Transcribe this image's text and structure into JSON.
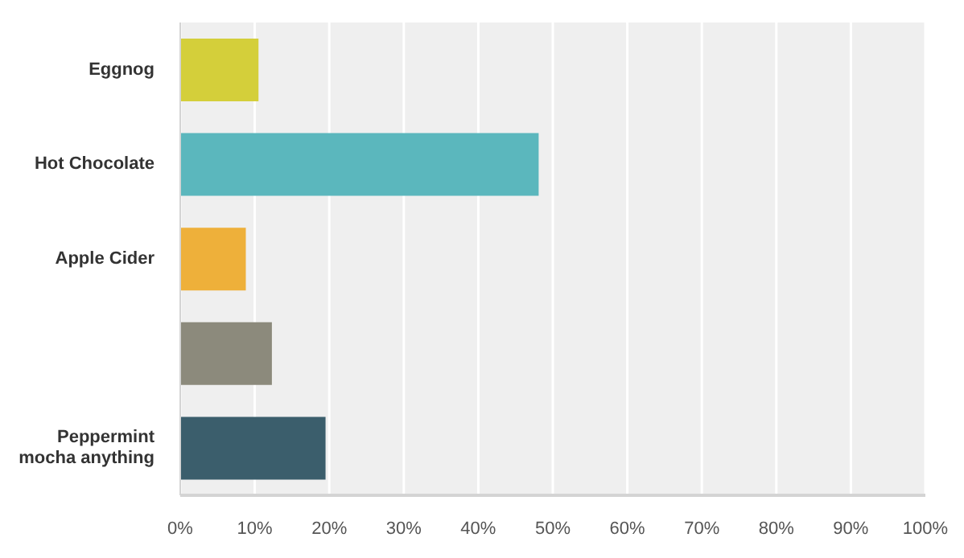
{
  "chart_data": {
    "type": "bar",
    "orientation": "horizontal",
    "categories": [
      "Eggnog",
      "Hot Chocolate",
      "Apple Cider",
      null,
      "Peppermint mocha anything"
    ],
    "values": [
      10.5,
      48.1,
      8.8,
      12.3,
      19.5
    ],
    "colors": [
      "#d4cf3a",
      "#5bb7bd",
      "#eeb03a",
      "#8c8a7c",
      "#3b5e6c"
    ],
    "xlim": [
      0,
      100
    ],
    "xticks": [
      {
        "value": 0,
        "label": "0%"
      },
      {
        "value": 10,
        "label": "10%"
      },
      {
        "value": 20,
        "label": "20%"
      },
      {
        "value": 30,
        "label": "30%"
      },
      {
        "value": 40,
        "label": "40%"
      },
      {
        "value": 50,
        "label": "50%"
      },
      {
        "value": 60,
        "label": "60%"
      },
      {
        "value": 70,
        "label": "70%"
      },
      {
        "value": 80,
        "label": "80%"
      },
      {
        "value": 90,
        "label": "90%"
      },
      {
        "value": 100,
        "label": "100%"
      }
    ],
    "grid": "x"
  }
}
